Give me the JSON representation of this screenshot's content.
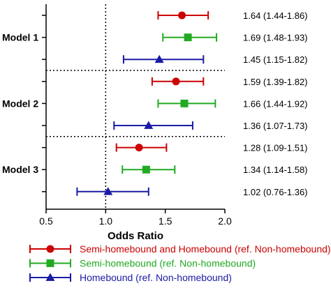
{
  "chart_data": {
    "type": "forest",
    "xlabel": "Odds Ratio",
    "xlim": [
      0.5,
      2.0
    ],
    "xticks": [
      "0.5",
      "1.0",
      "1.5",
      "2.0"
    ],
    "reference_line": 1.0,
    "colors": {
      "Semi-homebound and Homebound (ref. Non-homebound)": "#cc0000",
      "Semi-homebound (ref. Non-homebound)": "#22aa22",
      "Homebound (ref. Non-homebound)": "#1a1aa6"
    },
    "markers": {
      "Semi-homebound and Homebound (ref. Non-homebound)": "circle",
      "Semi-homebound (ref. Non-homebound)": "square",
      "Homebound (ref. Non-homebound)": "triangle"
    },
    "legend": [
      "Semi-homebound and Homebound (ref. Non-homebound)",
      "Semi-homebound (ref. Non-homebound)",
      "Homebound (ref. Non-homebound)"
    ],
    "legend_position": "bottom",
    "groups": [
      {
        "label": "Model 1",
        "rows": [
          {
            "series": "Semi-homebound and Homebound (ref. Non-homebound)",
            "or": 1.64,
            "lo": 1.44,
            "hi": 1.86,
            "text": "1.64 (1.44-1.86)"
          },
          {
            "series": "Semi-homebound (ref. Non-homebound)",
            "or": 1.69,
            "lo": 1.48,
            "hi": 1.93,
            "text": "1.69 (1.48-1.93)"
          },
          {
            "series": "Homebound (ref. Non-homebound)",
            "or": 1.45,
            "lo": 1.15,
            "hi": 1.82,
            "text": "1.45 (1.15-1.82)"
          }
        ]
      },
      {
        "label": "Model 2",
        "rows": [
          {
            "series": "Semi-homebound and Homebound (ref. Non-homebound)",
            "or": 1.59,
            "lo": 1.39,
            "hi": 1.82,
            "text": "1.59 (1.39-1.82)"
          },
          {
            "series": "Semi-homebound (ref. Non-homebound)",
            "or": 1.66,
            "lo": 1.44,
            "hi": 1.92,
            "text": "1.66 (1.44-1.92)"
          },
          {
            "series": "Homebound (ref. Non-homebound)",
            "or": 1.36,
            "lo": 1.07,
            "hi": 1.73,
            "text": "1.36 (1.07-1.73)"
          }
        ]
      },
      {
        "label": "Model 3",
        "rows": [
          {
            "series": "Semi-homebound and Homebound (ref. Non-homebound)",
            "or": 1.28,
            "lo": 1.09,
            "hi": 1.51,
            "text": "1.28 (1.09-1.51)"
          },
          {
            "series": "Semi-homebound (ref. Non-homebound)",
            "or": 1.34,
            "lo": 1.14,
            "hi": 1.58,
            "text": "1.34 (1.14-1.58)"
          },
          {
            "series": "Homebound (ref. Non-homebound)",
            "or": 1.02,
            "lo": 0.76,
            "hi": 1.36,
            "text": "1.02 (0.76-1.36)"
          }
        ]
      }
    ]
  }
}
